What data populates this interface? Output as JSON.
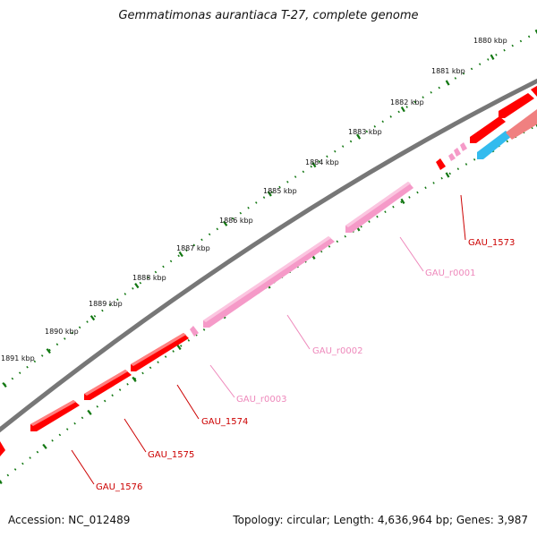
{
  "title": "Gemmatimonas aurantiaca T-27, complete genome",
  "footer": {
    "accession": "Accession: NC_012489",
    "summary": "Topology: circular; Length: 4,636,964 bp; Genes: 3,987"
  },
  "scale_labels": [
    "1880 kbp",
    "1881 kbp",
    "1882 kbp",
    "1883 kbp",
    "1884 kbp",
    "1885 kbp",
    "1886 kbp",
    "1887 kbp",
    "1888 kbp",
    "1889 kbp",
    "1890 kbp",
    "1891 kbp"
  ],
  "colors": {
    "backbone": "#777777",
    "cds": "#ff0000",
    "rrna": "#f59ac8",
    "trna_ncrna": "#33bbee",
    "scale_ticks": "#117711",
    "cds_label": "#cc0000",
    "rrna_label": "#ee88bb"
  },
  "features": [
    {
      "name": "GAU_1573",
      "type": "cds"
    },
    {
      "name": "GAU_r0001",
      "type": "rrna"
    },
    {
      "name": "GAU_r0002",
      "type": "rrna"
    },
    {
      "name": "GAU_r0003",
      "type": "rrna"
    },
    {
      "name": "GAU_1574",
      "type": "cds"
    },
    {
      "name": "GAU_1575",
      "type": "cds"
    },
    {
      "name": "GAU_1576",
      "type": "cds"
    }
  ]
}
